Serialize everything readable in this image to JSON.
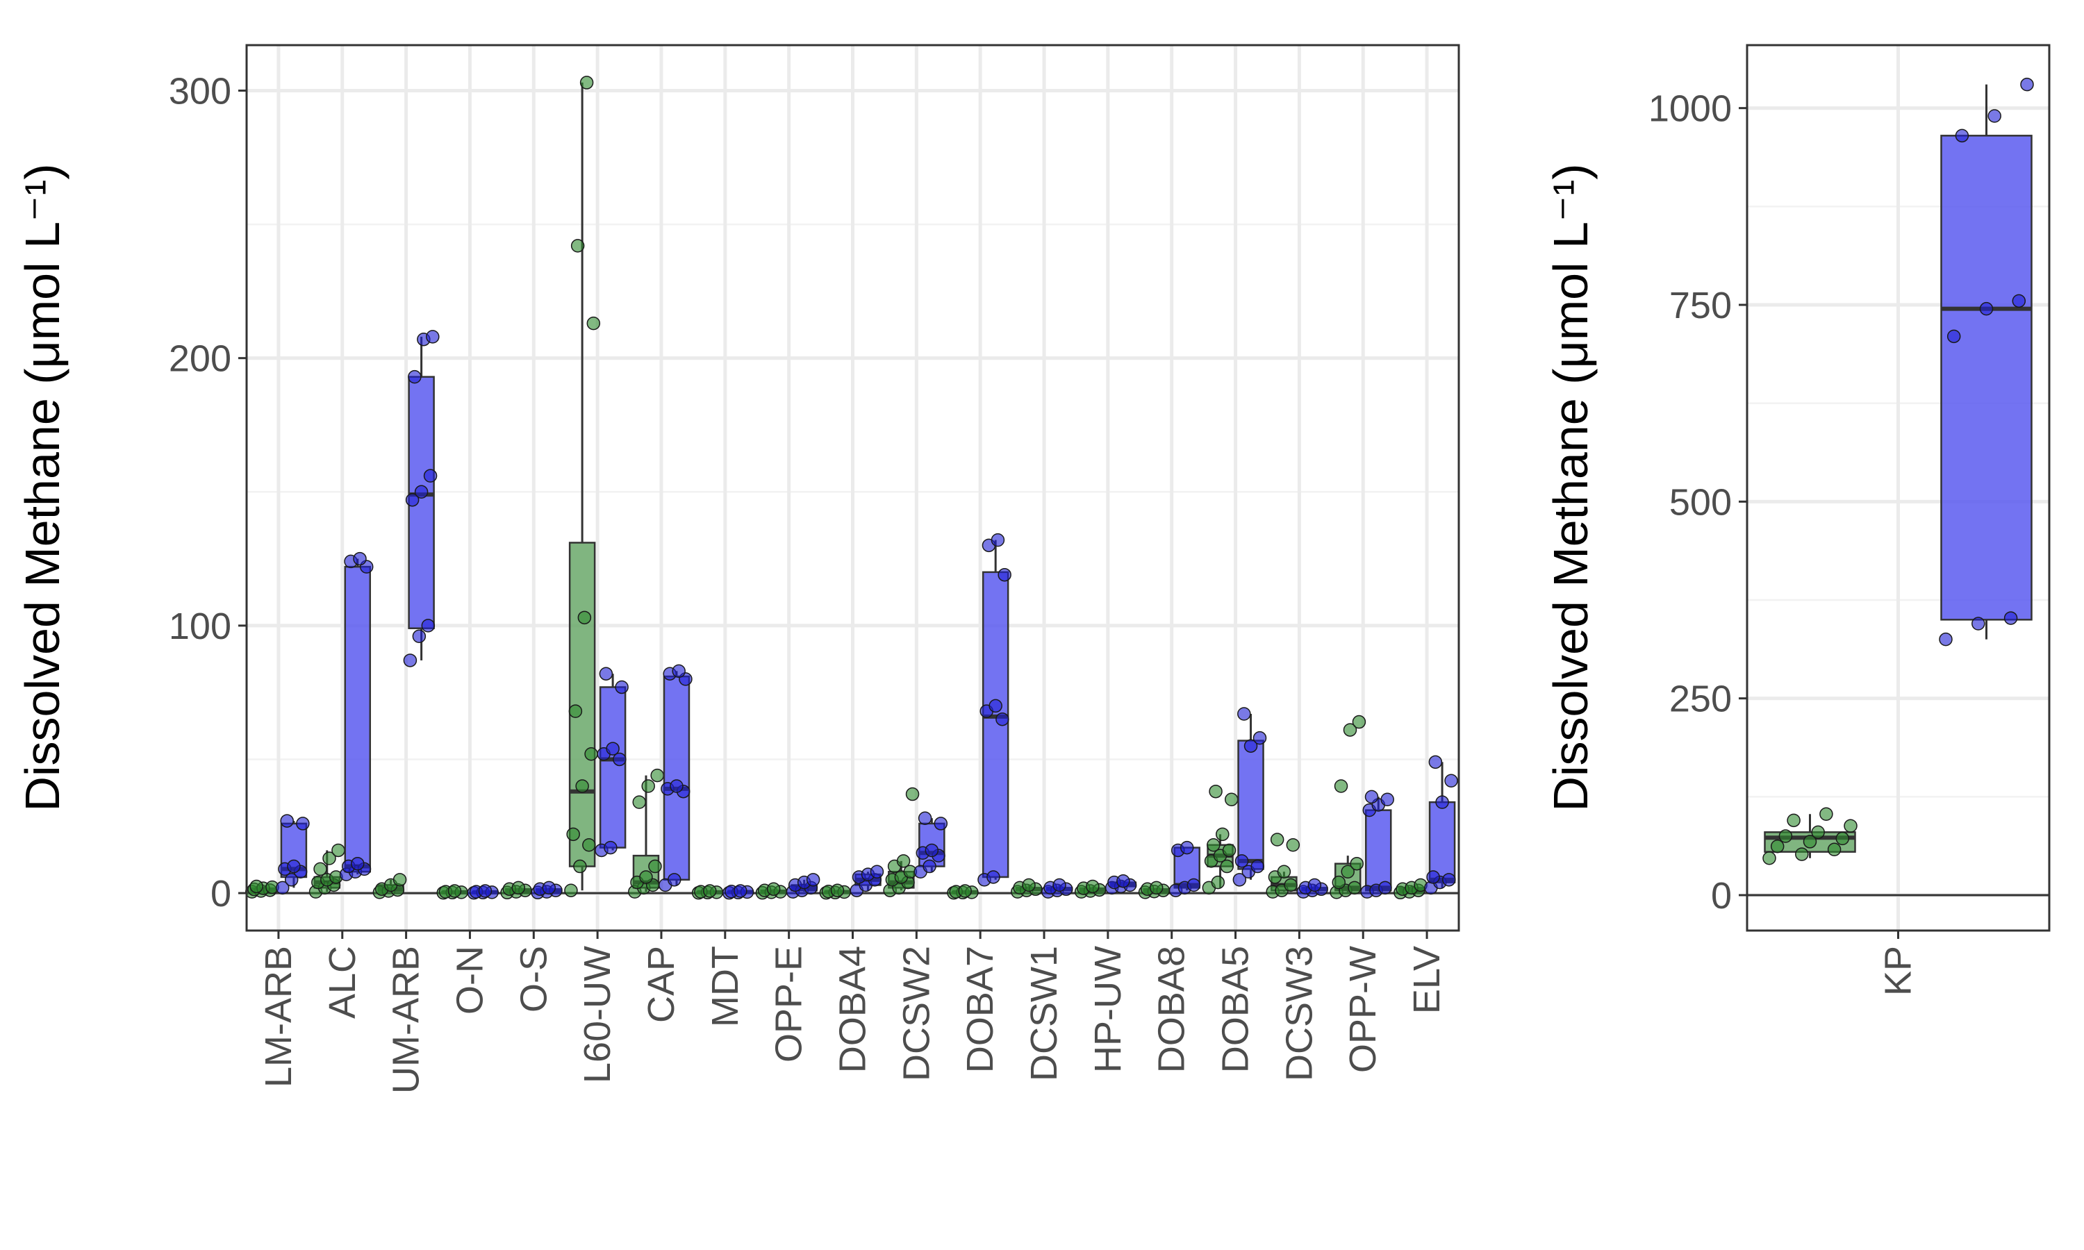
{
  "colors": {
    "group_a_fill": "#6aa86a",
    "group_a_point": "#2e8b2e",
    "group_b_fill": "#5a5af0",
    "group_b_point": "#1f1fd6",
    "grid": "#ebebeb",
    "frame": "#333333"
  },
  "chart_data": [
    {
      "type": "boxplot",
      "ylabel": "Dissolved Methane (μmol L⁻¹)",
      "ylim": [
        -14,
        317
      ],
      "yticks": [
        0,
        100,
        200,
        300
      ],
      "grid": true,
      "hline": 0,
      "categories": [
        "LM-ARB",
        "ALC",
        "UM-ARB",
        "O-N",
        "O-S",
        "L60-UW",
        "CAP",
        "MDT",
        "OPP-E",
        "DOBA4",
        "DCSW2",
        "DOBA7",
        "DCSW1",
        "HP-UW",
        "DOBA8",
        "DOBA5",
        "DCSW3",
        "OPP-W",
        "ELV"
      ],
      "series": [
        {
          "boxes": [
            {
              "min": 0.5,
              "q1": 0.8,
              "median": 1.2,
              "q3": 1.8,
              "max": 2.5,
              "points": [
                0.5,
                0.8,
                1.1,
                1.4,
                1.8,
                2.2,
                2.5
              ]
            },
            {
              "min": 0.5,
              "q1": 2,
              "median": 4,
              "q3": 6,
              "max": 16,
              "points": [
                0.5,
                2,
                3,
                4,
                5,
                6,
                9,
                13,
                16
              ]
            },
            {
              "min": 0.3,
              "q1": 0.8,
              "median": 1.5,
              "q3": 3,
              "max": 5,
              "points": [
                0.3,
                0.8,
                1.2,
                1.5,
                3,
                5
              ]
            },
            {
              "min": 0.1,
              "q1": 0.2,
              "median": 0.3,
              "q3": 0.5,
              "max": 0.8,
              "points": [
                0.1,
                0.2,
                0.3,
                0.5,
                0.8
              ]
            },
            {
              "min": 0.2,
              "q1": 0.5,
              "median": 1,
              "q3": 1.5,
              "max": 2,
              "points": [
                0.2,
                0.5,
                1,
                1.5,
                2
              ]
            },
            {
              "min": 1,
              "q1": 10,
              "median": 38,
              "q3": 131,
              "max": 303,
              "points": [
                1,
                10,
                18,
                22,
                40,
                52,
                68,
                103,
                213,
                242,
                303
              ]
            },
            {
              "min": 0.5,
              "q1": 2,
              "median": 4,
              "q3": 14,
              "max": 44,
              "points": [
                0.5,
                2,
                3,
                4,
                6,
                10,
                34,
                40,
                44
              ]
            },
            {
              "min": 0.1,
              "q1": 0.2,
              "median": 0.3,
              "q3": 0.5,
              "max": 0.8,
              "points": [
                0.1,
                0.2,
                0.3,
                0.5,
                0.8
              ]
            },
            {
              "min": 0.1,
              "q1": 0.3,
              "median": 0.5,
              "q3": 1,
              "max": 1.5,
              "points": [
                0.1,
                0.3,
                0.5,
                1,
                1.5
              ]
            },
            {
              "min": 0.1,
              "q1": 0.2,
              "median": 0.4,
              "q3": 0.6,
              "max": 1,
              "points": [
                0.1,
                0.2,
                0.4,
                0.6,
                1
              ]
            },
            {
              "min": 1,
              "q1": 2,
              "median": 4,
              "q3": 8,
              "max": 12,
              "points": [
                1,
                2,
                4,
                5,
                6,
                8,
                10,
                12,
                37
              ]
            },
            {
              "min": 0.1,
              "q1": 0.2,
              "median": 0.3,
              "q3": 0.5,
              "max": 0.8,
              "points": [
                0.1,
                0.2,
                0.3,
                0.5,
                0.8
              ]
            },
            {
              "min": 0.5,
              "q1": 1,
              "median": 1.5,
              "q3": 2,
              "max": 3,
              "points": [
                0.5,
                1,
                1.5,
                2,
                3
              ]
            },
            {
              "min": 0.5,
              "q1": 0.8,
              "median": 1.2,
              "q3": 1.8,
              "max": 2.5,
              "points": [
                0.5,
                0.8,
                1.2,
                1.8,
                2.5
              ]
            },
            {
              "min": 0.3,
              "q1": 0.6,
              "median": 1,
              "q3": 1.5,
              "max": 2,
              "points": [
                0.3,
                0.6,
                1,
                1.5,
                2
              ]
            },
            {
              "min": 2,
              "q1": 10,
              "median": 14,
              "q3": 18,
              "max": 22,
              "points": [
                2,
                4,
                10,
                12,
                14,
                16,
                18,
                22,
                35,
                38
              ]
            },
            {
              "min": 0.5,
              "q1": 1,
              "median": 3,
              "q3": 6,
              "max": 8,
              "points": [
                0.5,
                1,
                3,
                6,
                8,
                18,
                20
              ]
            },
            {
              "min": 0.3,
              "q1": 1,
              "median": 2,
              "q3": 11,
              "max": 14,
              "points": [
                0.3,
                1,
                2,
                4,
                8,
                11,
                40,
                61,
                64
              ]
            },
            {
              "min": 0.2,
              "q1": 0.5,
              "median": 1,
              "q3": 2,
              "max": 3,
              "points": [
                0.2,
                0.5,
                1,
                1.5,
                2,
                3
              ]
            }
          ]
        },
        {
          "boxes": [
            {
              "min": 2,
              "q1": 6,
              "median": 9,
              "q3": 26,
              "max": 27,
              "points": [
                2,
                5,
                8,
                9,
                10,
                26,
                27
              ]
            },
            {
              "min": 7,
              "q1": 8,
              "median": 10,
              "q3": 122,
              "max": 125,
              "points": [
                7,
                8,
                9,
                10,
                11,
                122,
                124,
                125
              ]
            },
            {
              "min": 87,
              "q1": 99,
              "median": 149,
              "q3": 193,
              "max": 208,
              "points": [
                87,
                96,
                100,
                147,
                150,
                156,
                193,
                207,
                208
              ]
            },
            {
              "min": 0.1,
              "q1": 0.2,
              "median": 0.3,
              "q3": 0.5,
              "max": 0.8,
              "points": [
                0.1,
                0.2,
                0.3,
                0.5,
                0.8
              ]
            },
            {
              "min": 0.2,
              "q1": 0.5,
              "median": 1,
              "q3": 1.5,
              "max": 2,
              "points": [
                0.2,
                0.5,
                1,
                1.5,
                2
              ]
            },
            {
              "min": 16,
              "q1": 17,
              "median": 50,
              "q3": 77,
              "max": 82,
              "points": [
                16,
                17,
                50,
                52,
                54,
                77,
                82
              ]
            },
            {
              "min": 3,
              "q1": 5,
              "median": 39,
              "q3": 81,
              "max": 83,
              "points": [
                3,
                5,
                38,
                39,
                40,
                80,
                82,
                83
              ]
            },
            {
              "min": 0.1,
              "q1": 0.2,
              "median": 0.4,
              "q3": 0.6,
              "max": 0.8,
              "points": [
                0.1,
                0.2,
                0.4,
                0.6,
                0.8
              ]
            },
            {
              "min": 0.5,
              "q1": 1,
              "median": 2,
              "q3": 3,
              "max": 5,
              "points": [
                0.5,
                1,
                2,
                3,
                4,
                5
              ]
            },
            {
              "min": 1,
              "q1": 3,
              "median": 5,
              "q3": 7,
              "max": 8,
              "points": [
                1,
                3,
                5,
                6,
                7,
                8
              ]
            },
            {
              "min": 8,
              "q1": 10,
              "median": 15,
              "q3": 26,
              "max": 28,
              "points": [
                8,
                10,
                14,
                15,
                16,
                26,
                28
              ]
            },
            {
              "min": 5,
              "q1": 6,
              "median": 66,
              "q3": 120,
              "max": 132,
              "points": [
                5,
                6,
                65,
                68,
                70,
                119,
                130,
                132
              ]
            },
            {
              "min": 0.5,
              "q1": 1,
              "median": 1.5,
              "q3": 2,
              "max": 3,
              "points": [
                0.5,
                1,
                1.5,
                2,
                3
              ]
            },
            {
              "min": 2,
              "q1": 2.5,
              "median": 3,
              "q3": 4,
              "max": 4.5,
              "points": [
                2,
                2.5,
                3,
                4,
                4.5
              ]
            },
            {
              "min": 1,
              "q1": 2,
              "median": 3,
              "q3": 17,
              "max": 17,
              "points": [
                1,
                2,
                3,
                16,
                17
              ]
            },
            {
              "min": 5,
              "q1": 9,
              "median": 12,
              "q3": 57,
              "max": 67,
              "points": [
                5,
                8,
                10,
                12,
                55,
                58,
                67
              ]
            },
            {
              "min": 0.5,
              "q1": 1,
              "median": 1.5,
              "q3": 2,
              "max": 3,
              "points": [
                0.5,
                1,
                1.5,
                2,
                3
              ]
            },
            {
              "min": 0.5,
              "q1": 1,
              "median": 2,
              "q3": 31,
              "max": 36,
              "points": [
                0.5,
                1,
                2,
                31,
                33,
                35,
                36
              ]
            },
            {
              "min": 2,
              "q1": 4,
              "median": 5,
              "q3": 34,
              "max": 49,
              "points": [
                2,
                4,
                5,
                6,
                34,
                42,
                49
              ]
            }
          ]
        }
      ]
    },
    {
      "type": "boxplot",
      "ylabel": "Dissolved Methane (μmol L⁻¹)",
      "ylim": [
        -45,
        1080
      ],
      "yticks": [
        0,
        250,
        500,
        750,
        1000
      ],
      "grid": true,
      "hline": 0,
      "categories": [
        "KP"
      ],
      "series": [
        {
          "boxes": [
            {
              "min": 47,
              "q1": 55,
              "median": 73,
              "q3": 80,
              "max": 103,
              "points": [
                47,
                52,
                58,
                62,
                68,
                72,
                75,
                80,
                88,
                95,
                103
              ]
            }
          ]
        },
        {
          "boxes": [
            {
              "min": 325,
              "q1": 350,
              "median": 745,
              "q3": 965,
              "max": 1030,
              "points": [
                325,
                345,
                352,
                710,
                745,
                755,
                965,
                990,
                1030
              ]
            }
          ]
        }
      ]
    }
  ]
}
